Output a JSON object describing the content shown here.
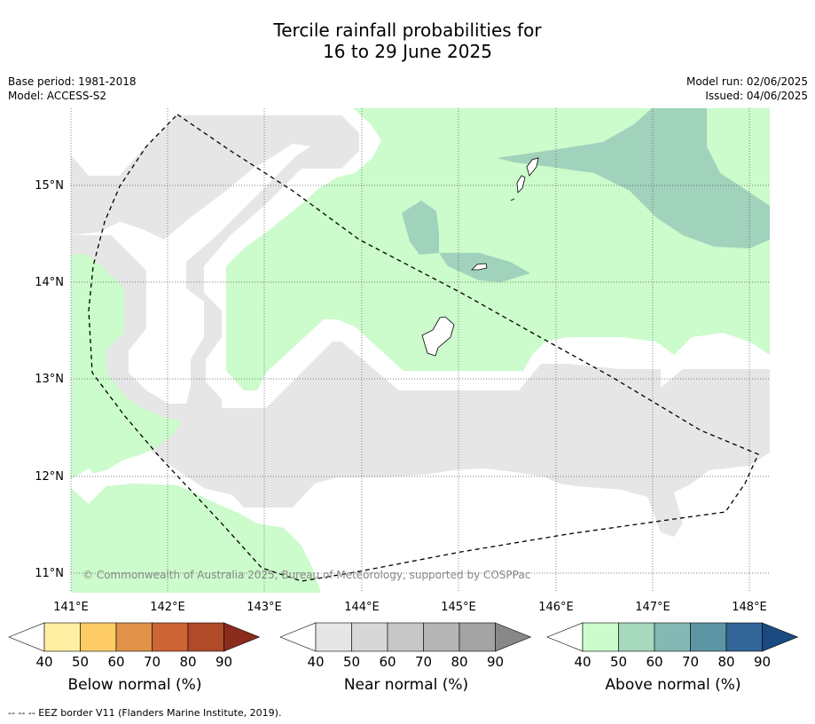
{
  "title_line1": "Tercile rainfall probabilities for",
  "title_line2": "16 to 29 June 2025",
  "meta_left": [
    "Base period: 1981-2018",
    "Model: ACCESS-S2"
  ],
  "meta_right": [
    "Model run: 02/06/2025",
    "Issued: 04/06/2025"
  ],
  "map": {
    "lon_ticks": [
      "141°E",
      "142°E",
      "143°E",
      "144°E",
      "145°E",
      "146°E",
      "147°E",
      "148°E"
    ],
    "lat_ticks": [
      "15°N",
      "14°N",
      "13°N",
      "12°N",
      "11°N"
    ],
    "copyright": "© Commonwealth of Australia 2025, Bureau of Meteorology, supported by COSPPac",
    "fill_colors": {
      "near_normal_40": "#e6e6e6",
      "above_normal_40": "#ccfbcc",
      "above_normal_50": "#a0d2bc",
      "no_dominant": "#ffffff"
    }
  },
  "legends": [
    {
      "caption": "Below normal (%)",
      "ticks": [
        "40",
        "50",
        "60",
        "70",
        "80",
        "90"
      ],
      "colors": [
        "#ffffff",
        "#feeea2",
        "#fdcc66",
        "#e1924a",
        "#cd6433",
        "#b04a28",
        "#8b2b1c"
      ]
    },
    {
      "caption": "Near normal (%)",
      "ticks": [
        "40",
        "50",
        "60",
        "70",
        "80",
        "90"
      ],
      "colors": [
        "#ffffff",
        "#e6e6e6",
        "#d7d7d7",
        "#c7c7c7",
        "#b5b5b5",
        "#a3a3a3",
        "#888888"
      ]
    },
    {
      "caption": "Above normal (%)",
      "ticks": [
        "40",
        "50",
        "60",
        "70",
        "80",
        "90"
      ],
      "colors": [
        "#ffffff",
        "#ccfbcc",
        "#a7d9bc",
        "#84b8b4",
        "#5c95a4",
        "#336699",
        "#1a4a80"
      ]
    }
  ],
  "footer": "--  --  -- EEZ border V11 (Flanders Marine Institute, 2019)."
}
